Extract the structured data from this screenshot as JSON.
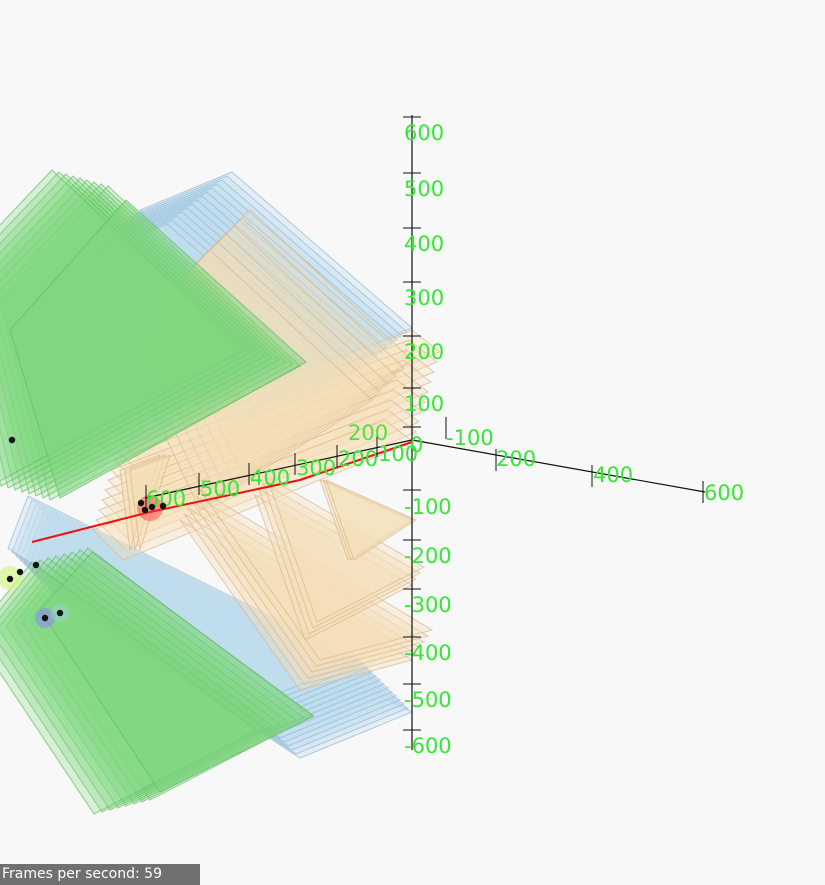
{
  "scene": {
    "colors": {
      "background": "#f8f8f8",
      "axis_line": "#111111",
      "tick_label": "#37e637",
      "green_panel": "#7fd67f",
      "blue_panel": "#bfdcef",
      "peach_panel": "#f5dfb8",
      "red_beam": "#ee1111"
    },
    "axes": {
      "y_ticks": [
        "600",
        "500",
        "400",
        "300",
        "200",
        "100",
        "0",
        "-100",
        "-200",
        "-300",
        "-400",
        "-500",
        "-600"
      ],
      "x_ticks": [
        "-100",
        "200",
        "400",
        "600"
      ],
      "z_ticks": [
        "100",
        "200",
        "300",
        "400",
        "500",
        "600"
      ],
      "extra_tick": "200"
    }
  },
  "status": {
    "fps_label": "Frames per second: 59"
  }
}
